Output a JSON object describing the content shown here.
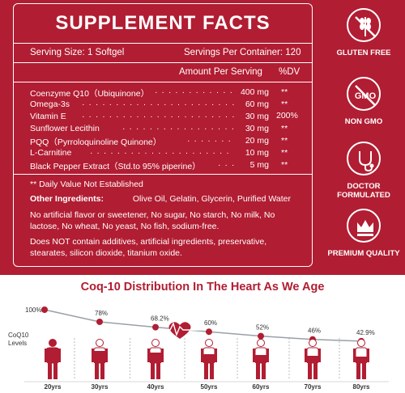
{
  "facts": {
    "title": "SUPPLEMENT FACTS",
    "serving_size": "Serving Size: 1 Softgel",
    "servings_per_container": "Servings Per Container: 120",
    "amount_per_serving": "Amount Per Serving",
    "dv_header": "%DV",
    "ingredients": [
      {
        "name": "Coenzyme Q10（Ubiquinone）",
        "amount": "400 mg",
        "dv": "**"
      },
      {
        "name": "Omega-3s",
        "amount": "60 mg",
        "dv": "**"
      },
      {
        "name": "Vitamin E",
        "amount": "30 mg",
        "dv": "200%"
      },
      {
        "name": "Sunflower Lecithin",
        "amount": "30 mg",
        "dv": "**"
      },
      {
        "name": "PQQ（Pyrroloquinoline Quinone）",
        "amount": "20 mg",
        "dv": "**"
      },
      {
        "name": "L-Carnitine",
        "amount": "10 mg",
        "dv": "**"
      },
      {
        "name": "Black Pepper Extract（Std.to 95% piperine）",
        "amount": "5 mg",
        "dv": "**"
      }
    ],
    "daily_value_note": "** Daily Value Not Established",
    "other_label": "Other Ingredients:",
    "other_value": "Olive Oil, Gelatin, Glycerin, Purified Water",
    "free_from_1": "No artificial flavor or sweetener, No sugar, No starch, No milk, No",
    "free_from_2": "lactose, No wheat, No yeast, No fish, sodium-free.",
    "additives_1": "Does NOT contain additives, artificial ingredients, preservative,",
    "additives_2": "stearates, silicon dioxide, titanium oxide."
  },
  "badges": [
    {
      "icon": "wheat-icon",
      "label": "GLUTEN FREE"
    },
    {
      "icon": "gmo-icon",
      "label": "NON GMO"
    },
    {
      "icon": "stethoscope-icon",
      "label": "DOCTOR FORMULATED"
    },
    {
      "icon": "crown-icon",
      "label": "PREMIUM QUALITY"
    }
  ],
  "colors": {
    "brand_red": "#b11d32",
    "figure_red": "#b11d32"
  },
  "chart_title": "Coq-10 Distribution In The Heart As We Age",
  "chart_ylabel_1": "CoQ10",
  "chart_ylabel_2": "Levels",
  "chart_data": {
    "type": "line",
    "title": "Coq-10 Distribution In The Heart As We Age",
    "ylabel": "CoQ10 Levels",
    "x": [
      "20yrs",
      "30yrs",
      "40yrs",
      "50yrs",
      "60yrs",
      "70yrs",
      "80yrs"
    ],
    "values": [
      100,
      78,
      68.2,
      60,
      52,
      46,
      42.9
    ],
    "labels": [
      "100%",
      "78%",
      "68.2%",
      "60%",
      "52%",
      "46%",
      "42.9%"
    ]
  }
}
